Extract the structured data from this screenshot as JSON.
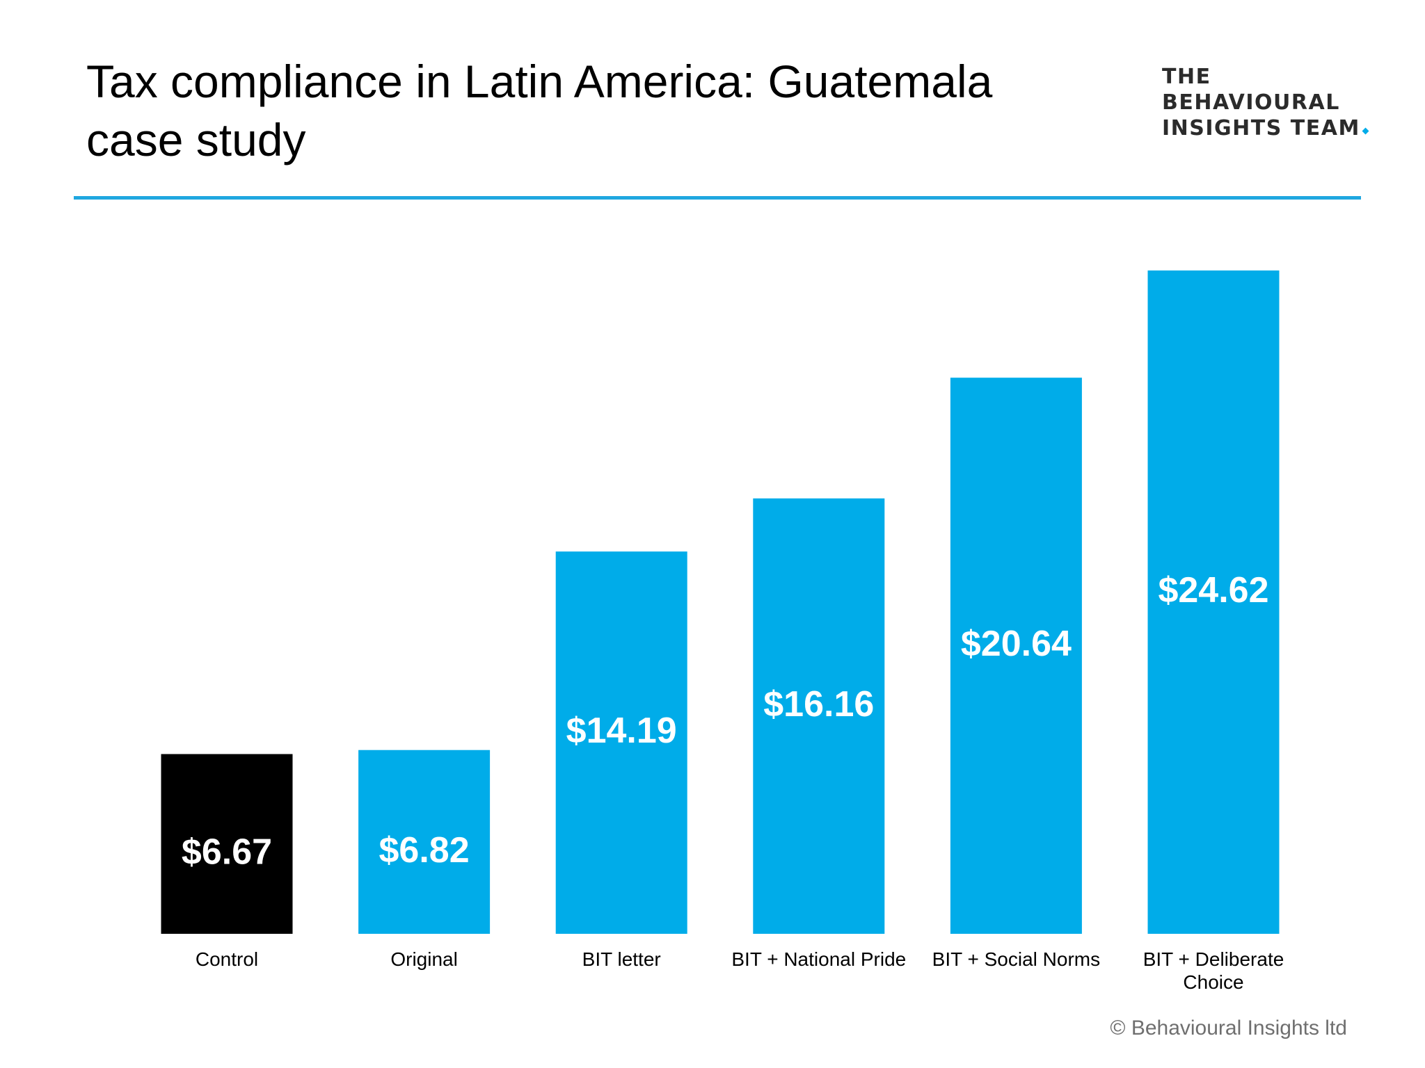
{
  "slide": {
    "title_line_1": "Tax compliance in Latin America: Guatemala",
    "title_line_2": "case study",
    "logo": {
      "line_1": "THE",
      "line_2": "BEHAVIOURAL",
      "line_3": "INSIGHTS TEAM",
      "accent_color": "#00ace9"
    },
    "rule_color": "#1fa7e0",
    "copyright": "© Behavioural Insights ltd"
  },
  "chart_data": {
    "type": "bar",
    "title": "",
    "xlabel": "",
    "ylabel": "",
    "ylim": [
      0,
      24.62
    ],
    "grid": false,
    "legend": "none",
    "categories": [
      [
        "Control"
      ],
      [
        "Original"
      ],
      [
        "BIT letter"
      ],
      [
        "BIT + National Pride"
      ],
      [
        "BIT + Social Norms"
      ],
      [
        "BIT + Deliberate",
        "Choice"
      ]
    ],
    "values": [
      6.67,
      6.82,
      14.19,
      16.16,
      20.64,
      24.62
    ],
    "value_labels": [
      "$6.67",
      "$6.82",
      "$14.19",
      "$16.16",
      "$20.64",
      "$24.62"
    ],
    "colors": [
      "#000000",
      "#00ace9",
      "#00ace9",
      "#00ace9",
      "#00ace9",
      "#00ace9"
    ],
    "value_label_color": "#ffffff",
    "category_label_color": "#000000"
  }
}
